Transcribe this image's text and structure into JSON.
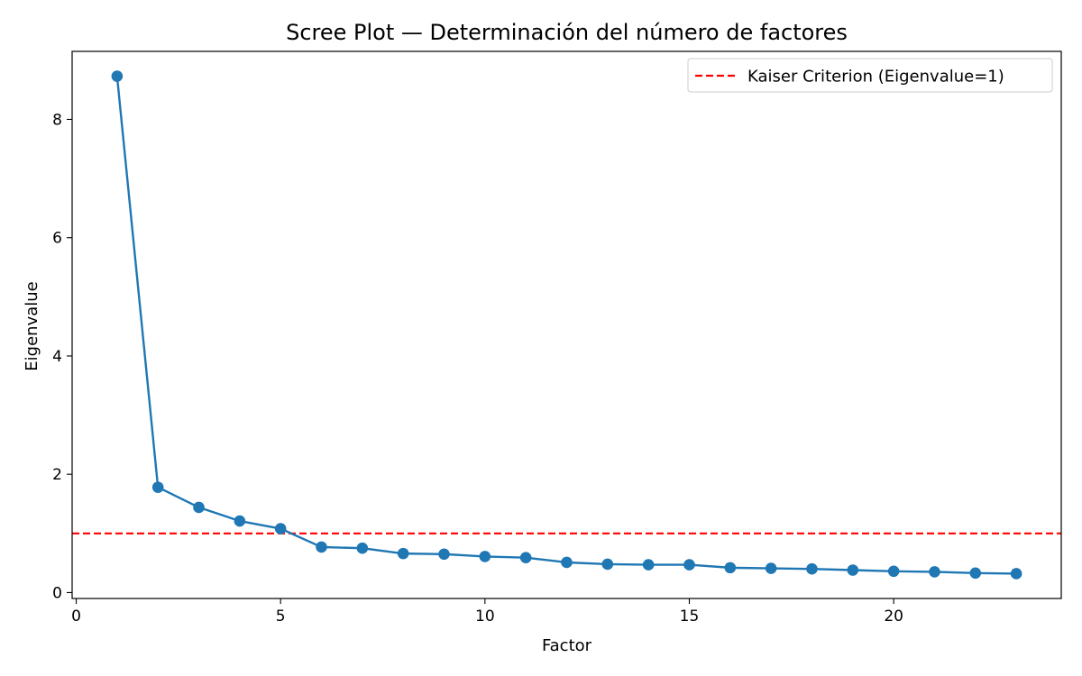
{
  "chart_data": {
    "type": "line",
    "title": "Scree Plot — Determinación del número de factores",
    "xlabel": "Factor",
    "ylabel": "Eigenvalue",
    "xlim": [
      -0.1,
      24.1
    ],
    "ylim": [
      -0.1,
      9.15
    ],
    "xticks": [
      0,
      5,
      10,
      15,
      20
    ],
    "yticks": [
      0,
      2,
      4,
      6,
      8
    ],
    "grid": false,
    "legend_position": "top-right",
    "series": [
      {
        "color": "#1f77b4",
        "marker": "circle",
        "x": [
          1,
          2,
          3,
          4,
          5,
          6,
          7,
          8,
          9,
          10,
          11,
          12,
          13,
          14,
          15,
          16,
          17,
          18,
          19,
          20,
          21,
          22,
          23
        ],
        "y": [
          8.73,
          1.78,
          1.44,
          1.21,
          1.08,
          0.77,
          0.75,
          0.66,
          0.65,
          0.61,
          0.59,
          0.51,
          0.48,
          0.47,
          0.47,
          0.42,
          0.41,
          0.4,
          0.38,
          0.36,
          0.35,
          0.33,
          0.32
        ]
      }
    ],
    "reference_lines": [
      {
        "name": "Kaiser Criterion (Eigenvalue=1)",
        "orientation": "horizontal",
        "y": 1,
        "color": "#ff0000",
        "style": "dashed"
      }
    ]
  }
}
